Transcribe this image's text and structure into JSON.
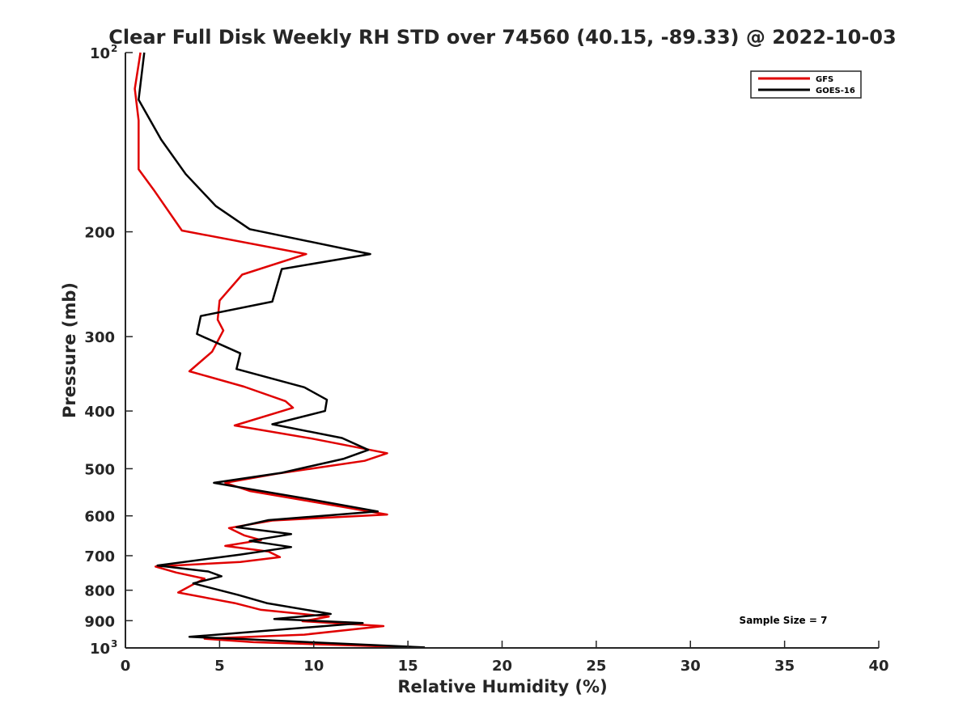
{
  "chart_data": {
    "type": "line",
    "title": "Clear Full Disk Weekly RH STD over 74560 (40.15, -89.33) @ 2022-10-03",
    "xlabel": "Relative Humidity (%)",
    "ylabel": "Pressure (mb)",
    "xlim": [
      0,
      40
    ],
    "ylim": [
      100,
      1000
    ],
    "yscale": "log",
    "y_reversed": true,
    "grid": false,
    "legend_position": "top-right",
    "x_ticks": [
      "0",
      "5",
      "10",
      "15",
      "20",
      "25",
      "30",
      "35",
      "40"
    ],
    "y_ticks": [
      {
        "value": 100,
        "label": "10",
        "exp": "2"
      },
      {
        "value": 200,
        "label": "200"
      },
      {
        "value": 300,
        "label": "300"
      },
      {
        "value": 400,
        "label": "400"
      },
      {
        "value": 500,
        "label": "500"
      },
      {
        "value": 600,
        "label": "600"
      },
      {
        "value": 700,
        "label": "700"
      },
      {
        "value": 800,
        "label": "800"
      },
      {
        "value": 900,
        "label": "900"
      },
      {
        "value": 1000,
        "label": "10",
        "exp": "3"
      }
    ],
    "annotation": "Sample Size = 7",
    "series": [
      {
        "name": "GFS",
        "color": "#e00000",
        "points": [
          [
            0.8,
            100
          ],
          [
            0.5,
            115
          ],
          [
            0.7,
            130
          ],
          [
            0.7,
            157
          ],
          [
            1.5,
            170
          ],
          [
            3.0,
            199
          ],
          [
            9.6,
            218
          ],
          [
            6.2,
            236
          ],
          [
            5.0,
            261
          ],
          [
            4.9,
            281
          ],
          [
            5.2,
            293
          ],
          [
            4.6,
            318
          ],
          [
            3.4,
            343
          ],
          [
            6.3,
            364
          ],
          [
            8.5,
            385
          ],
          [
            8.9,
            395
          ],
          [
            5.8,
            423
          ],
          [
            9.9,
            445
          ],
          [
            13.9,
            471
          ],
          [
            12.7,
            485
          ],
          [
            8.0,
            510
          ],
          [
            5.3,
            528
          ],
          [
            6.6,
            545
          ],
          [
            9.5,
            565
          ],
          [
            13.9,
            597
          ],
          [
            7.8,
            611
          ],
          [
            5.5,
            629
          ],
          [
            6.3,
            647
          ],
          [
            7.2,
            659
          ],
          [
            5.3,
            674
          ],
          [
            7.6,
            689
          ],
          [
            8.2,
            704
          ],
          [
            6.1,
            717
          ],
          [
            1.6,
            730
          ],
          [
            2.7,
            747
          ],
          [
            4.2,
            765
          ],
          [
            3.7,
            779
          ],
          [
            2.8,
            807
          ],
          [
            5.8,
            841
          ],
          [
            7.2,
            863
          ],
          [
            10.8,
            886
          ],
          [
            9.4,
            902
          ],
          [
            13.7,
            919
          ],
          [
            9.5,
            950
          ],
          [
            4.2,
            965
          ],
          [
            6.8,
            978
          ],
          [
            15.0,
            997
          ]
        ]
      },
      {
        "name": "GOES-16",
        "color": "#000000",
        "points": [
          [
            1.0,
            100
          ],
          [
            0.7,
            120
          ],
          [
            1.9,
            140
          ],
          [
            3.2,
            160
          ],
          [
            4.8,
            181
          ],
          [
            6.6,
            198
          ],
          [
            13.0,
            218
          ],
          [
            8.3,
            231
          ],
          [
            7.8,
            262
          ],
          [
            4.0,
            277
          ],
          [
            3.8,
            297
          ],
          [
            6.1,
            320
          ],
          [
            5.9,
            340
          ],
          [
            9.5,
            365
          ],
          [
            10.7,
            383
          ],
          [
            10.6,
            400
          ],
          [
            7.8,
            421
          ],
          [
            11.5,
            444
          ],
          [
            12.9,
            465
          ],
          [
            11.6,
            481
          ],
          [
            8.3,
            508
          ],
          [
            4.7,
            528
          ],
          [
            6.6,
            541
          ],
          [
            9.7,
            562
          ],
          [
            13.4,
            590
          ],
          [
            7.6,
            610
          ],
          [
            5.9,
            627
          ],
          [
            8.8,
            644
          ],
          [
            6.6,
            661
          ],
          [
            8.8,
            677
          ],
          [
            6.1,
            697
          ],
          [
            1.7,
            727
          ],
          [
            4.4,
            744
          ],
          [
            5.1,
            758
          ],
          [
            3.6,
            779
          ],
          [
            6.0,
            815
          ],
          [
            7.5,
            841
          ],
          [
            10.9,
            877
          ],
          [
            7.9,
            894
          ],
          [
            12.6,
            908
          ],
          [
            3.4,
            958
          ],
          [
            6.4,
            967
          ],
          [
            15.9,
            998
          ]
        ]
      }
    ]
  }
}
